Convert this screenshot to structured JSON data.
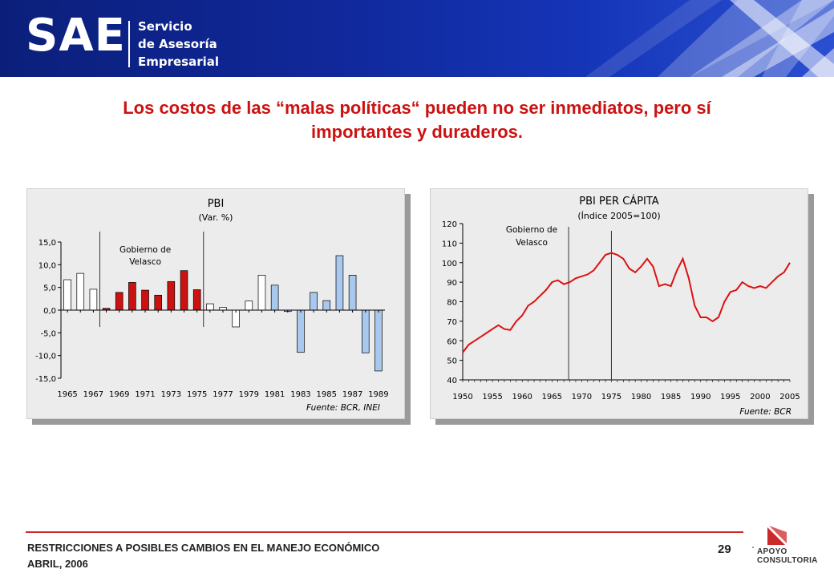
{
  "header": {
    "logo": "SAE",
    "subtitle_lines": [
      "Servicio",
      "de Asesoría",
      "Empresarial"
    ],
    "banner_color": "#10289a"
  },
  "headline": {
    "line1": "Los costos de las “malas políticas“ pueden no ser inmediatos, pero sí",
    "line2": "importantes y duraderos.",
    "color": "#cc1111"
  },
  "chart_data": [
    {
      "type": "bar",
      "title": "PBI",
      "subtitle": "(Var. %)",
      "ylim": [
        -15,
        15
      ],
      "yticks": [
        "15,0",
        "10,0",
        "5,0",
        "0,0",
        "-5,0",
        "-10,0",
        "-15,0"
      ],
      "xtick_labels": [
        "1965",
        "1967",
        "1969",
        "1971",
        "1973",
        "1975",
        "1977",
        "1979",
        "1981",
        "1983",
        "1985",
        "1987",
        "1989"
      ],
      "categories": [
        "1965",
        "1966",
        "1967",
        "1968",
        "1969",
        "1970",
        "1971",
        "1972",
        "1973",
        "1974",
        "1975",
        "1976",
        "1977",
        "1978",
        "1979",
        "1980",
        "1981",
        "1982",
        "1983",
        "1984",
        "1985",
        "1986",
        "1987",
        "1988",
        "1989"
      ],
      "values": [
        6.7,
        8.1,
        4.6,
        0.4,
        3.9,
        6.1,
        4.4,
        3.3,
        6.3,
        8.7,
        4.5,
        1.4,
        0.6,
        -3.7,
        2.0,
        7.7,
        5.5,
        -0.3,
        -9.3,
        3.9,
        2.1,
        12.0,
        7.7,
        -9.4,
        -13.4
      ],
      "period_colors": [
        "#ffffff",
        "#ffffff",
        "#ffffff",
        "#cc1111",
        "#cc1111",
        "#cc1111",
        "#cc1111",
        "#cc1111",
        "#cc1111",
        "#cc1111",
        "#cc1111",
        "#ffffff",
        "#ffffff",
        "#ffffff",
        "#ffffff",
        "#ffffff",
        "#a9c8ee",
        "#a9c8ee",
        "#a9c8ee",
        "#a9c8ee",
        "#a9c8ee",
        "#a9c8ee",
        "#a9c8ee",
        "#a9c8ee",
        "#a9c8ee"
      ],
      "annotation": "Gobierno de Velasco",
      "annotation_lines": [
        "Gobierno de",
        "Velasco"
      ],
      "source": "Fuente: BCR, INEI"
    },
    {
      "type": "line",
      "title": "PBI PER CÁPITA",
      "subtitle": "(Índice 2005=100)",
      "ylim": [
        40,
        120
      ],
      "yticks": [
        "120",
        "110",
        "100",
        "90",
        "80",
        "70",
        "60",
        "50",
        "40"
      ],
      "xtick_labels": [
        "1950",
        "1955",
        "1960",
        "1965",
        "1970",
        "1975",
        "1980",
        "1985",
        "1990",
        "1995",
        "2000",
        "2005"
      ],
      "xlim": [
        1950,
        2005
      ],
      "series": [
        {
          "color": "#dd1111",
          "x": [
            1950,
            1951,
            1952,
            1953,
            1954,
            1955,
            1956,
            1957,
            1958,
            1959,
            1960,
            1961,
            1962,
            1963,
            1964,
            1965,
            1966,
            1967,
            1968,
            1969,
            1970,
            1971,
            1972,
            1973,
            1974,
            1975,
            1976,
            1977,
            1978,
            1979,
            1980,
            1981,
            1982,
            1983,
            1984,
            1985,
            1986,
            1987,
            1988,
            1989,
            1990,
            1991,
            1992,
            1993,
            1994,
            1995,
            1996,
            1997,
            1998,
            1999,
            2000,
            2001,
            2002,
            2003,
            2004,
            2005
          ],
          "values": [
            54,
            58,
            60,
            62,
            64,
            66,
            68,
            66,
            65.5,
            70,
            73,
            78,
            80,
            83,
            86,
            90,
            91,
            89,
            90,
            92,
            93,
            94,
            96,
            100,
            104,
            105,
            104,
            102,
            97,
            95,
            98,
            102,
            98,
            88,
            89,
            88,
            96,
            102,
            92,
            78,
            72,
            72,
            70,
            72,
            80,
            85,
            86,
            90,
            88,
            87,
            88,
            87,
            90,
            93,
            95,
            100
          ]
        }
      ],
      "annotation": "Gobierno de Velasco",
      "annotation_lines": [
        "Gobierno de",
        "Velasco"
      ],
      "source": "Fuente: BCR"
    }
  ],
  "footer": {
    "line1": "RESTRICCIONES A POSIBLES CAMBIOS EN EL MANEJO ECONÓMICO",
    "line2": "ABRIL, 2006",
    "page_number": "29",
    "logo_lines": [
      "APOYO",
      "CONSULTORIA"
    ],
    "accent": "#cc2a2a"
  }
}
